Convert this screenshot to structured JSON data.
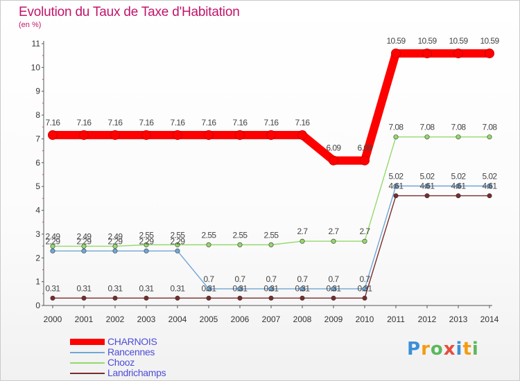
{
  "chart_data": {
    "type": "line",
    "title": "Evolution du Taux de Taxe d'Habitation",
    "subtitle": "(en %)",
    "xlabel": "",
    "ylabel": "",
    "ylim": [
      0,
      11
    ],
    "yticks": [
      0,
      1,
      2,
      3,
      4,
      5,
      6,
      7,
      8,
      9,
      10,
      11
    ],
    "categories": [
      "2000",
      "2001",
      "2002",
      "2003",
      "2004",
      "2005",
      "2006",
      "2007",
      "2008",
      "2009",
      "2010",
      "2011",
      "2012",
      "2013",
      "2014"
    ],
    "series": [
      {
        "name": "CHARNOIS",
        "color": "#ff0000",
        "values": [
          7.16,
          7.16,
          7.16,
          7.16,
          7.16,
          7.16,
          7.16,
          7.16,
          7.16,
          6.09,
          6.09,
          10.59,
          10.59,
          10.59,
          10.59
        ],
        "labels": [
          "7.16",
          "7.16",
          "7.16",
          "7.16",
          "7.16",
          "7.16",
          "7.16",
          "7.16",
          "7.16",
          "6.09",
          "6.09",
          "10.59",
          "10.59",
          "10.59",
          "10.59"
        ]
      },
      {
        "name": "Rancennes",
        "color": "#6fa6d6",
        "values": [
          2.29,
          2.29,
          2.29,
          2.29,
          2.29,
          0.7,
          0.7,
          0.7,
          0.7,
          0.7,
          0.7,
          5.02,
          5.02,
          5.02,
          5.02
        ],
        "labels": [
          "2.29",
          "2.29",
          "2.29",
          "2.29",
          "2.29",
          "0.7",
          "0.7",
          "0.7",
          "0.7",
          "0.7",
          "0.7",
          "5.02",
          "5.02",
          "5.02",
          "5.02"
        ]
      },
      {
        "name": "Chooz",
        "color": "#94d96b",
        "values": [
          2.49,
          2.49,
          2.49,
          2.55,
          2.55,
          2.55,
          2.55,
          2.55,
          2.7,
          2.7,
          2.7,
          7.08,
          7.08,
          7.08,
          7.08
        ],
        "labels": [
          "2.49",
          "2.49",
          "2.49",
          "2.55",
          "2.55",
          "2.55",
          "2.55",
          "2.55",
          "2.7",
          "2.7",
          "2.7",
          "7.08",
          "7.08",
          "7.08",
          "7.08"
        ]
      },
      {
        "name": "Landrichamps",
        "color": "#7a2b2b",
        "values": [
          0.31,
          0.31,
          0.31,
          0.31,
          0.31,
          0.31,
          0.31,
          0.31,
          0.31,
          0.31,
          0.31,
          4.61,
          4.61,
          4.61,
          4.61
        ],
        "labels": [
          "0.31",
          "0.31",
          "0.31",
          "0.31",
          "0.31",
          "0.31",
          "0.31",
          "0.31",
          "0.31",
          "0.31",
          "0.31",
          "4.61",
          "4.61",
          "4.61",
          "4.61"
        ]
      }
    ]
  },
  "legend": {
    "items": [
      {
        "name": "CHARNOIS",
        "color": "#ff0000"
      },
      {
        "name": "Rancennes",
        "color": "#6fa6d6"
      },
      {
        "name": "Chooz",
        "color": "#94d96b"
      },
      {
        "name": "Landrichamps",
        "color": "#7a2b2b"
      }
    ]
  },
  "logo": {
    "letters": [
      "P",
      "r",
      "o",
      "x",
      "i",
      "t",
      "i"
    ],
    "colors": [
      "#3b8fd8",
      "#f39c12",
      "#5cb85c",
      "#e74c3c",
      "#3b8fd8",
      "#f39c12",
      "#5cb85c"
    ]
  }
}
